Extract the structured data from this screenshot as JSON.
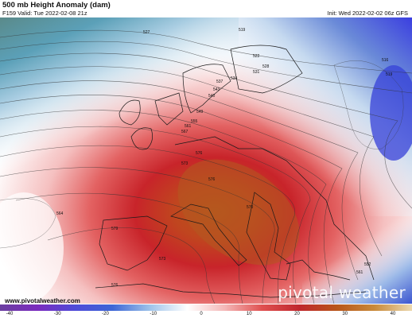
{
  "header": {
    "title": "500 mb Height Anomaly (dam)",
    "valid": "F159 Valid: Tue 2022-02-08 21z",
    "init": "Init: Wed 2022-02-02 06z GFS"
  },
  "footer": {
    "url": "www.pivotalweather.com",
    "brand": "pivotal weather"
  },
  "colorbar": {
    "ticks": [
      "-40",
      "-30",
      "-20",
      "-10",
      "0",
      "10",
      "20",
      "30",
      "40"
    ],
    "colors": [
      "#6b3fa0",
      "#7b2cbf",
      "#4f4bd8",
      "#3d66d6",
      "#9ec3ea",
      "#ffffff",
      "#f4b8b8",
      "#e05050",
      "#c0272d",
      "#b8561a",
      "#c98a3a",
      "#ecd9b0"
    ]
  },
  "contour_labels": [
    "527",
    "519",
    "516",
    "528",
    "531",
    "537",
    "534",
    "522",
    "543",
    "540",
    "549",
    "555",
    "567",
    "561",
    "573",
    "576",
    "576",
    "564",
    "579",
    "573",
    "576",
    "570",
    "552",
    "561",
    "519"
  ]
}
